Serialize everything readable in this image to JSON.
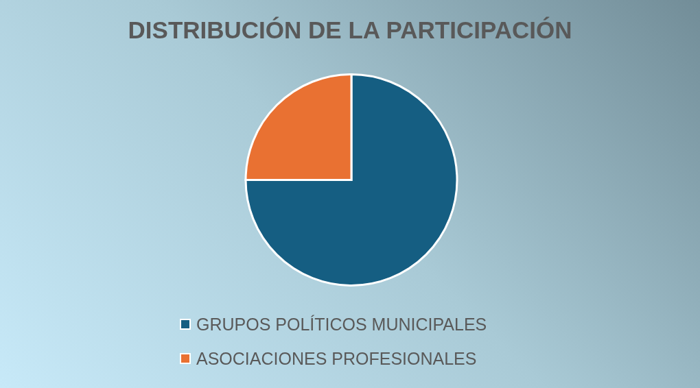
{
  "chart_data": {
    "type": "pie",
    "title": "DISTRIBUCIÓN DE LA PARTICIPACIÓN",
    "categories": [
      "GRUPOS POLÍTICOS MUNICIPALES",
      "ASOCIACIONES PROFESIONALES"
    ],
    "values": [
      75,
      25
    ],
    "colors": [
      "#155e82",
      "#e97132"
    ],
    "legend": "bottom"
  }
}
